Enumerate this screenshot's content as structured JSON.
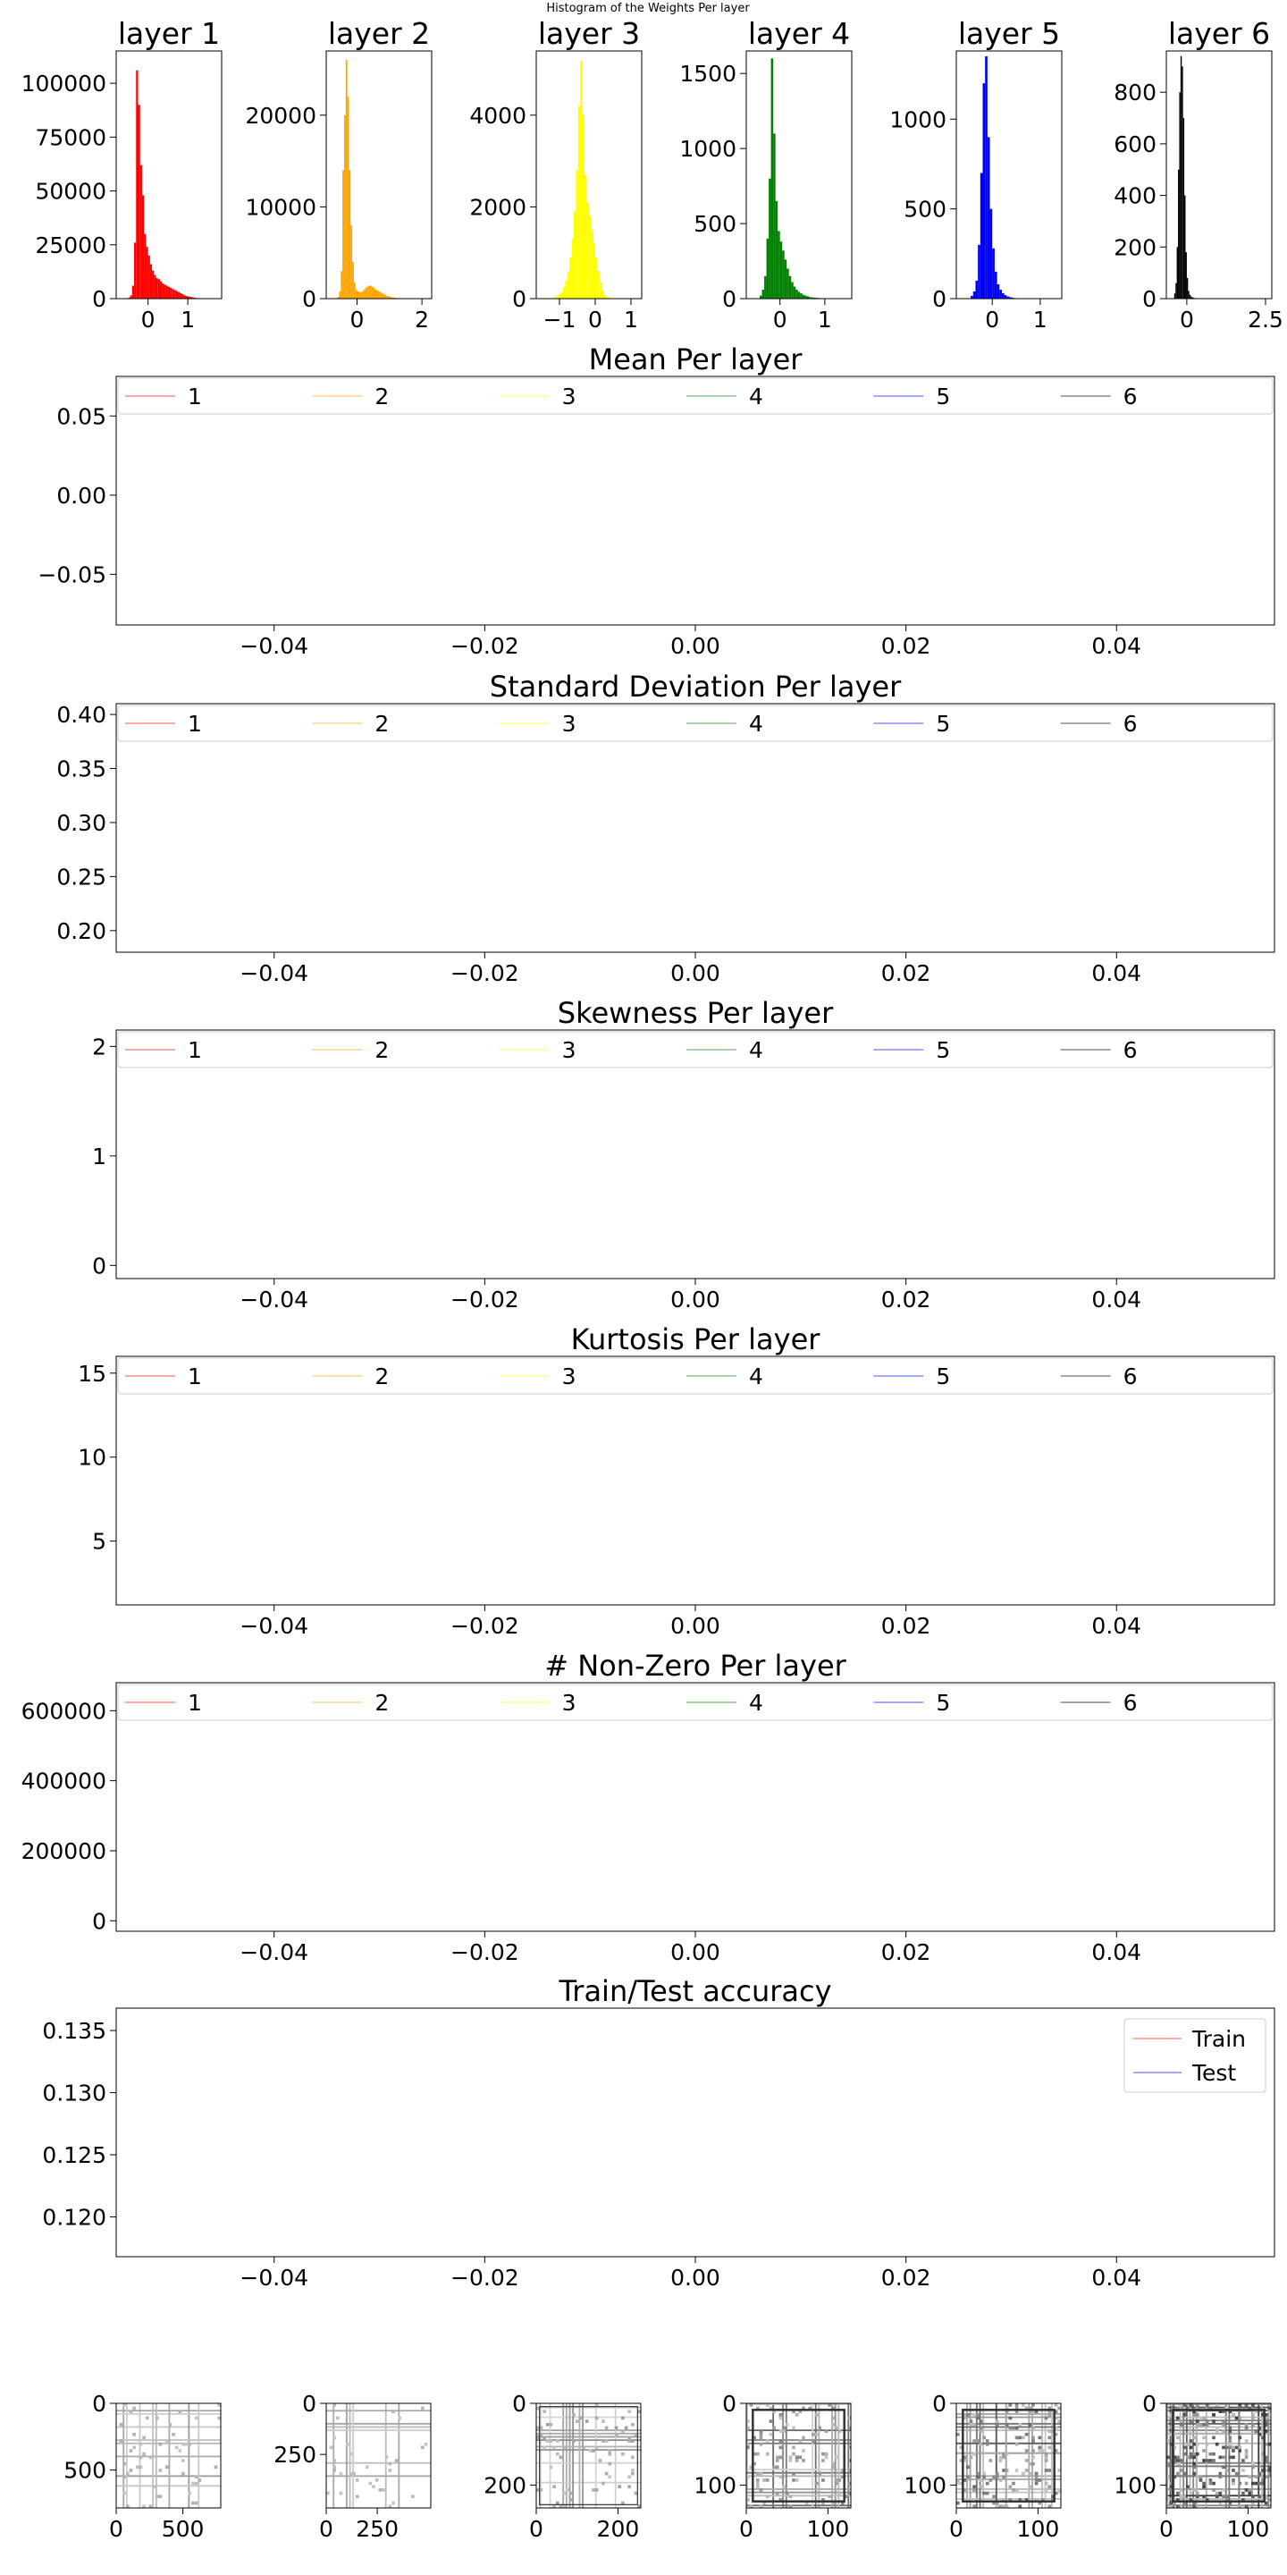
{
  "suptitle": "Histogram of the Weights Per layer",
  "chart_data": [
    {
      "type": "histogram",
      "title": "layer 1",
      "color": "#ff0000",
      "xticks": [
        0,
        1
      ],
      "xlim": [
        -0.8,
        1.85
      ],
      "yticks": [
        0,
        25000,
        50000,
        75000,
        100000
      ],
      "ylim": [
        0,
        115000
      ],
      "bins": {
        "start": -0.5,
        "step": 0.05,
        "heights": [
          500,
          1500,
          6000,
          26000,
          106000,
          90000,
          62000,
          48000,
          30000,
          24000,
          20000,
          16000,
          13000,
          11000,
          9500,
          9000,
          8000,
          7000,
          6500,
          6000,
          5500,
          5000,
          4500,
          4000,
          3500,
          3000,
          2500,
          2000,
          1500,
          1200,
          1000,
          800,
          600,
          400,
          300,
          200,
          150,
          100
        ]
      }
    },
    {
      "type": "histogram",
      "title": "layer 2",
      "color": "#ffa500",
      "xticks": [
        0,
        2
      ],
      "xlim": [
        -0.95,
        2.3
      ],
      "yticks": [
        0,
        10000,
        20000
      ],
      "ylim": [
        0,
        27000
      ],
      "bins": {
        "start": -0.6,
        "step": 0.05,
        "heights": [
          200,
          800,
          3000,
          14000,
          20000,
          26000,
          22000,
          14000,
          8000,
          4000,
          1800,
          1000,
          800,
          700,
          700,
          800,
          1000,
          1200,
          1300,
          1400,
          1400,
          1300,
          1200,
          1000,
          900,
          800,
          700,
          600,
          500,
          400,
          300,
          250,
          200,
          150,
          120,
          100,
          80,
          60,
          50,
          40,
          30,
          20
        ]
      }
    },
    {
      "type": "histogram",
      "title": "layer 3",
      "color": "#ffff00",
      "xticks": [
        -1,
        0,
        1
      ],
      "xlim": [
        -1.65,
        1.3
      ],
      "yticks": [
        0,
        2000,
        4000
      ],
      "ylim": [
        0,
        5400
      ],
      "bins": {
        "start": -1.2,
        "step": 0.06,
        "heights": [
          20,
          40,
          60,
          100,
          150,
          250,
          400,
          600,
          900,
          1300,
          1900,
          2800,
          4200,
          5200,
          4000,
          2700,
          2100,
          1800,
          1500,
          1200,
          900,
          600,
          350,
          180,
          80,
          40,
          20
        ]
      }
    },
    {
      "type": "histogram",
      "title": "layer 4",
      "color": "#008000",
      "xticks": [
        0,
        1
      ],
      "xlim": [
        -0.75,
        1.6
      ],
      "yticks": [
        0,
        500,
        1000,
        1500
      ],
      "ylim": [
        0,
        1650
      ],
      "bins": {
        "start": -0.45,
        "step": 0.05,
        "heights": [
          20,
          60,
          150,
          400,
          800,
          1600,
          1100,
          650,
          450,
          380,
          320,
          260,
          200,
          150,
          110,
          80,
          60,
          45,
          35,
          25,
          20,
          15,
          10,
          8,
          6,
          5,
          4,
          3,
          2,
          2,
          1,
          1,
          1,
          1,
          1,
          1
        ]
      }
    },
    {
      "type": "histogram",
      "title": "layer 5",
      "color": "#0000ff",
      "xticks": [
        0,
        1
      ],
      "xlim": [
        -0.75,
        1.45
      ],
      "yticks": [
        0,
        500,
        1000
      ],
      "ylim": [
        0,
        1380
      ],
      "bins": {
        "start": -0.45,
        "step": 0.05,
        "heights": [
          15,
          40,
          100,
          300,
          700,
          1200,
          1350,
          900,
          500,
          280,
          150,
          80,
          50,
          30,
          20,
          12,
          8,
          5,
          3,
          2,
          1,
          1,
          1,
          1,
          1,
          1,
          1,
          1,
          1
        ]
      }
    },
    {
      "type": "histogram",
      "title": "layer 6",
      "color": "#000000",
      "xticks": [
        0,
        2.5
      ],
      "xlim": [
        -0.65,
        2.7
      ],
      "yticks": [
        0,
        200,
        400,
        600,
        800
      ],
      "ylim": [
        0,
        960
      ],
      "bins": {
        "start": -0.4,
        "step": 0.04,
        "heights": [
          20,
          60,
          200,
          500,
          800,
          940,
          900,
          700,
          400,
          180,
          80,
          30,
          15,
          8,
          5,
          3,
          2,
          1,
          1,
          1
        ]
      }
    },
    {
      "type": "line",
      "title": "Mean Per layer",
      "xticks": [
        -0.04,
        -0.02,
        0,
        0.02,
        0.04
      ],
      "xticklabels": [
        "−0.04",
        "−0.02",
        "0.00",
        "0.02",
        "0.04"
      ],
      "xlim": [
        -0.055,
        0.055
      ],
      "yticks": [
        -0.05,
        0,
        0.05
      ],
      "yticklabels": [
        "−0.05",
        "0.00",
        "0.05"
      ],
      "ylim": [
        -0.082,
        0.075
      ],
      "legend": "top, 6 columns",
      "series": [
        {
          "name": "1",
          "color": "#ff0000",
          "x": [],
          "y": []
        },
        {
          "name": "2",
          "color": "#ffa500",
          "x": [],
          "y": []
        },
        {
          "name": "3",
          "color": "#ffff00",
          "x": [],
          "y": []
        },
        {
          "name": "4",
          "color": "#008000",
          "x": [],
          "y": []
        },
        {
          "name": "5",
          "color": "#0000ff",
          "x": [],
          "y": []
        },
        {
          "name": "6",
          "color": "#000000",
          "x": [],
          "y": []
        }
      ]
    },
    {
      "type": "line",
      "title": "Standard Deviation Per layer",
      "xticks": [
        -0.04,
        -0.02,
        0,
        0.02,
        0.04
      ],
      "xticklabels": [
        "−0.04",
        "−0.02",
        "0.00",
        "0.02",
        "0.04"
      ],
      "xlim": [
        -0.055,
        0.055
      ],
      "yticks": [
        0.2,
        0.25,
        0.3,
        0.35,
        0.4
      ],
      "yticklabels": [
        "0.20",
        "0.25",
        "0.30",
        "0.35",
        "0.40"
      ],
      "ylim": [
        0.18,
        0.41
      ],
      "legend": "top, 6 columns",
      "series": [
        {
          "name": "1",
          "color": "#ff0000",
          "x": [],
          "y": []
        },
        {
          "name": "2",
          "color": "#ffa500",
          "x": [],
          "y": []
        },
        {
          "name": "3",
          "color": "#ffff00",
          "x": [],
          "y": []
        },
        {
          "name": "4",
          "color": "#008000",
          "x": [],
          "y": []
        },
        {
          "name": "5",
          "color": "#0000ff",
          "x": [],
          "y": []
        },
        {
          "name": "6",
          "color": "#000000",
          "x": [],
          "y": []
        }
      ]
    },
    {
      "type": "line",
      "title": "Skewness Per layer",
      "xticks": [
        -0.04,
        -0.02,
        0,
        0.02,
        0.04
      ],
      "xticklabels": [
        "−0.04",
        "−0.02",
        "0.00",
        "0.02",
        "0.04"
      ],
      "xlim": [
        -0.055,
        0.055
      ],
      "yticks": [
        0,
        1,
        2
      ],
      "yticklabels": [
        "0",
        "1",
        "2"
      ],
      "ylim": [
        -0.12,
        2.15
      ],
      "legend": "top, 6 columns",
      "series": [
        {
          "name": "1",
          "color": "#ff0000",
          "x": [],
          "y": []
        },
        {
          "name": "2",
          "color": "#ffa500",
          "x": [],
          "y": []
        },
        {
          "name": "3",
          "color": "#ffff00",
          "x": [],
          "y": []
        },
        {
          "name": "4",
          "color": "#008000",
          "x": [],
          "y": []
        },
        {
          "name": "5",
          "color": "#0000ff",
          "x": [],
          "y": []
        },
        {
          "name": "6",
          "color": "#000000",
          "x": [],
          "y": []
        }
      ]
    },
    {
      "type": "line",
      "title": "Kurtosis Per layer",
      "xticks": [
        -0.04,
        -0.02,
        0,
        0.02,
        0.04
      ],
      "xticklabels": [
        "−0.04",
        "−0.02",
        "0.00",
        "0.02",
        "0.04"
      ],
      "xlim": [
        -0.055,
        0.055
      ],
      "yticks": [
        5,
        10,
        15
      ],
      "yticklabels": [
        "5",
        "10",
        "15"
      ],
      "ylim": [
        1.2,
        16.0
      ],
      "legend": "top, 6 columns",
      "series": [
        {
          "name": "1",
          "color": "#ff0000",
          "x": [],
          "y": []
        },
        {
          "name": "2",
          "color": "#ffa500",
          "x": [],
          "y": []
        },
        {
          "name": "3",
          "color": "#ffff00",
          "x": [],
          "y": []
        },
        {
          "name": "4",
          "color": "#008000",
          "x": [],
          "y": []
        },
        {
          "name": "5",
          "color": "#0000ff",
          "x": [],
          "y": []
        },
        {
          "name": "6",
          "color": "#000000",
          "x": [],
          "y": []
        }
      ]
    },
    {
      "type": "line",
      "title": "# Non-Zero Per layer",
      "xticks": [
        -0.04,
        -0.02,
        0,
        0.02,
        0.04
      ],
      "xticklabels": [
        "−0.04",
        "−0.02",
        "0.00",
        "0.02",
        "0.04"
      ],
      "xlim": [
        -0.055,
        0.055
      ],
      "yticks": [
        0,
        200000,
        400000,
        600000
      ],
      "yticklabels": [
        "0",
        "200000",
        "400000",
        "600000"
      ],
      "ylim": [
        -30000,
        680000
      ],
      "legend": "top, 6 columns",
      "series": [
        {
          "name": "1",
          "color": "#ff0000",
          "x": [],
          "y": []
        },
        {
          "name": "2",
          "color": "#ffa500",
          "x": [],
          "y": []
        },
        {
          "name": "3",
          "color": "#ffff00",
          "x": [],
          "y": []
        },
        {
          "name": "4",
          "color": "#008000",
          "x": [],
          "y": []
        },
        {
          "name": "5",
          "color": "#0000ff",
          "x": [],
          "y": []
        },
        {
          "name": "6",
          "color": "#000000",
          "x": [],
          "y": []
        }
      ]
    },
    {
      "type": "line",
      "title": "Train/Test accuracy",
      "xticks": [
        -0.04,
        -0.02,
        0,
        0.02,
        0.04
      ],
      "xticklabels": [
        "−0.04",
        "−0.02",
        "0.00",
        "0.02",
        "0.04"
      ],
      "xlim": [
        -0.055,
        0.055
      ],
      "yticks": [
        0.12,
        0.125,
        0.13,
        0.135
      ],
      "yticklabels": [
        "0.120",
        "0.125",
        "0.130",
        "0.135"
      ],
      "ylim": [
        0.1168,
        0.1368
      ],
      "legend": "top-right",
      "series": [
        {
          "name": "Train",
          "color": "#ff0000",
          "x": [],
          "y": []
        },
        {
          "name": "Test",
          "color": "#0000ff",
          "x": [],
          "y": []
        }
      ]
    },
    {
      "type": "heatmap",
      "size": 784,
      "xticks": [
        0,
        500
      ],
      "yticks": [
        0,
        500
      ],
      "pattern": "light grid, faint diagonal",
      "density": 0.15,
      "seed": 11
    },
    {
      "type": "heatmap",
      "size": 512,
      "xticks": [
        0,
        250
      ],
      "yticks": [
        0,
        250
      ],
      "pattern": "very light speckle",
      "density": 0.1,
      "seed": 23
    },
    {
      "type": "heatmap",
      "size": 256,
      "xticks": [
        0,
        200
      ],
      "yticks": [
        0,
        200
      ],
      "pattern": "light grid with darker border",
      "density": 0.22,
      "seed": 37
    },
    {
      "type": "heatmap",
      "size": 128,
      "xticks": [
        0,
        100
      ],
      "yticks": [
        0,
        100
      ],
      "pattern": "grid with dark frame lines",
      "density": 0.35,
      "seed": 41
    },
    {
      "type": "heatmap",
      "size": 128,
      "xticks": [
        0,
        100
      ],
      "yticks": [
        0,
        100
      ],
      "pattern": "dense grid with dark frame",
      "density": 0.5,
      "seed": 53
    },
    {
      "type": "heatmap",
      "size": 128,
      "xticks": [
        0,
        100
      ],
      "yticks": [
        0,
        100
      ],
      "pattern": "dark blocky",
      "density": 0.7,
      "seed": 67
    }
  ]
}
